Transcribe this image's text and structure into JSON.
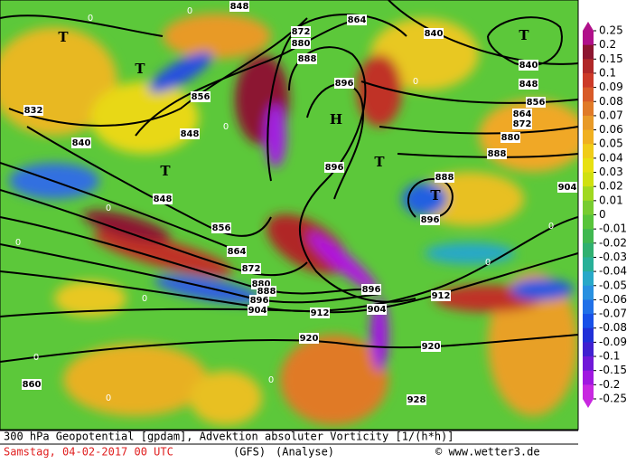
{
  "map": {
    "contour_labels": [
      "848",
      "864",
      "872",
      "880",
      "888",
      "896",
      "856",
      "848",
      "840",
      "832",
      "848",
      "856",
      "864",
      "872",
      "880",
      "888",
      "896",
      "904",
      "912",
      "896",
      "904",
      "912",
      "920",
      "920",
      "928",
      "860",
      "840",
      "840",
      "848",
      "856",
      "864",
      "872",
      "880",
      "888",
      "896",
      "888",
      "896",
      "904"
    ],
    "zero_labels": [
      "0",
      "0",
      "0",
      "0",
      "0",
      "0",
      "0",
      "0",
      "0",
      "0",
      "0",
      "0"
    ],
    "pressure_labels": [
      "T",
      "T",
      "T",
      "T",
      "T",
      "T",
      "H"
    ]
  },
  "colorbar": {
    "ticks": [
      0.25,
      0.2,
      0.15,
      0.1,
      0.09,
      0.08,
      0.07,
      0.06,
      0.05,
      0.04,
      0.03,
      0.02,
      0.01,
      0,
      -0.01,
      -0.02,
      -0.03,
      -0.04,
      -0.05,
      -0.06,
      -0.07,
      -0.08,
      -0.09,
      -0.1,
      -0.15,
      -0.2,
      -0.25
    ],
    "colors": [
      "#b0108a",
      "#8c1530",
      "#b02828",
      "#cc3a28",
      "#d85a28",
      "#e07a28",
      "#e89a28",
      "#f0b020",
      "#f0cc18",
      "#e8e010",
      "#d0e010",
      "#a0d820",
      "#78cc30",
      "#58c43a",
      "#40b850",
      "#30b070",
      "#28b098",
      "#28a8c8",
      "#2890e0",
      "#2070e8",
      "#1850e8",
      "#2030d8",
      "#4020d0",
      "#7018d8",
      "#a018e0",
      "#c828e0"
    ]
  },
  "footer": {
    "title": "300 hPa Geopotential [gpdam], Advektion absoluter Vorticity [1/(h*h)]",
    "date": "Samstag, 04-02-2017  00 UTC",
    "model": "(GFS)",
    "run": "(Analyse)",
    "credit": "© www.wetter3.de"
  }
}
